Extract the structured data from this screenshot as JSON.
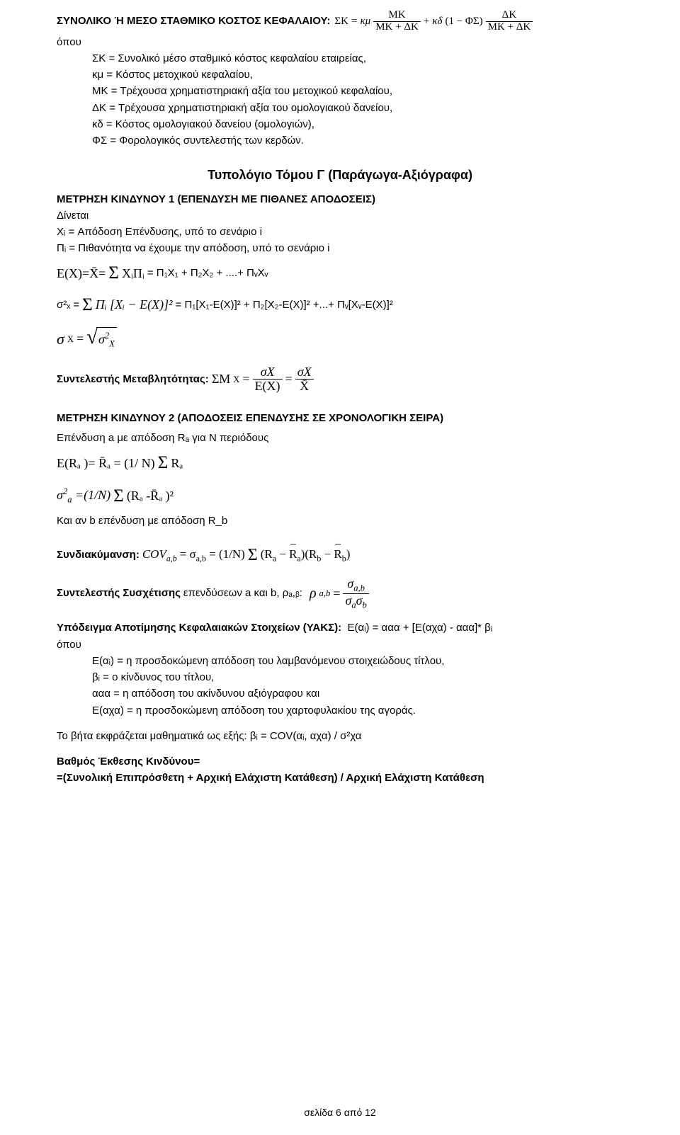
{
  "header": {
    "title": "ΣΥΝΟΛΙΚΟ Ή ΜΕΣΟ ΣΤΑΘΜΙΚΟ ΚΟΣΤΟΣ ΚΕΦΑΛΑΙΟΥ:",
    "sk": "ΣΚ",
    "eq": "=",
    "km": "κμ",
    "mk": "MK",
    "dk": "ΔΚ",
    "plus": "+",
    "kd": "κδ",
    "one_minus_fs": "(1 − ΦΣ)",
    "mk_dk": "MK + ΔΚ"
  },
  "opou": "όπου",
  "defs": {
    "l1": "ΣΚ = Συνολικό μέσο σταθμικό κόστος κεφαλαίου εταιρείας,",
    "l2": "κμ = Κόστος μετοχικού κεφαλαίου,",
    "l3": "ΜΚ = Τρέχουσα χρηματιστηριακή αξία του μετοχικού κεφαλαίου,",
    "l4": "ΔΚ = Τρέχουσα χρηματιστηριακή αξία του ομολογιακού δανείου,",
    "l5": "κδ = Κόστος ομολογιακού δανείου (ομολογιών),",
    "l6": "ΦΣ = Φορολογικός συντελεστής των κερδών."
  },
  "sectionTitle": "Τυπολόγιο Τόμου Γ (Παράγωγα-Αξιόγραφα)",
  "risk1": {
    "title": "ΜΕΤΡΗΣΗ ΚΙΝΔΥΝΟΥ 1 (ΕΠΕΝΔΥΣΗ ΜΕ ΠΙΘΑΝΕΣ ΑΠΟΔΟΣΕΙΣ)",
    "given": "Δίνεται",
    "xi": "Xᵢ = Απόδοση Επένδυσης, υπό το σενάριο i",
    "pi": "Πᵢ = Πιθανότητα να έχουμε την απόδοση, υπό το σενάριο i",
    "ex_lhs": "E(X)=X̄=",
    "ex_sum": "Σ",
    "ex_term": "XᵢΠᵢ",
    "ex_rhs": "= Π₁X₁ + Π₂X₂ + ....+ ΠᵥXᵥ",
    "var_lhs": "σ²ₓ = ",
    "var_sum": "Σ",
    "var_term1": "Πᵢ [Xᵢ − E(X)]²",
    "var_rhs": "= Π₁[X₁-E(X)]² + Π₂[X₂-E(X)]² +...+ Πᵥ[Xᵥ-E(X)]²",
    "sd_lhs": "σ",
    "sd_sub": "X",
    "sd_eq": " = ",
    "sd_body": "σ²X",
    "cv_label": "Συντελεστής Μεταβλητότητας:",
    "cv_sm": "ΣΜ",
    "cv_sub": "X",
    "cv_eq": "=",
    "cv_num1": "σX",
    "cv_den1": "E(X)",
    "cv_num2": "σX",
    "cv_den2": "X̄"
  },
  "risk2": {
    "title": "ΜΕΤΡΗΣΗ ΚΙΝΔΥΝΟΥ 2 (ΑΠΟΔΟΣΕΙΣ ΕΠΕΝΔΥΣΗΣ ΣΕ ΧΡΟΝΟΛΟΓΙΚΗ ΣΕΙΡΑ)",
    "intro": "Επένδυση a με απόδοση Rₐ για N περιόδους",
    "era": "E(Rₐ )= R̄ₐ = (1/ N)",
    "era_sum": "Σ",
    "era_term": "Rₐ",
    "var_a": "σ²ₐ =(1/N)",
    "var_a_sum": "Σ",
    "var_a_term": "(Rₐ -R̄ₐ )²",
    "andb": "Και αν b επένδυση με απόδοση R_b"
  },
  "cov": {
    "label": "Συνδιακύμανση:",
    "expr": "COVₐ,ᵦ = σₐ,ᵦ = (1/N)",
    "sum": "Σ",
    "term_l": "(Rₐ − ",
    "rbar_a": "R̄ₐ",
    "term_m": ")(R_b − ",
    "rbar_b": "R̄_b",
    "term_r": ")"
  },
  "corr": {
    "label": "Συντελεστής Συσχέτισης",
    "txt": " επενδύσεων a και b, ρₐ,ᵦ:",
    "rho": "ρ",
    "sub": "a,b",
    "eq": "=",
    "num": "σₐ,ᵦ",
    "den": "σₐσ_b"
  },
  "yaks": {
    "label": "Υπόδειγμα Αποτίμησης Κεφαλαιακών Στοιχείων (ΥΑΚΣ):",
    "formula": "Ε(αᵢ) = ααα + [Ε(αχα) - ααα]* βᵢ",
    "opou": "όπου",
    "l1": "Ε(αᵢ) = η προσδοκώμενη απόδοση του λαμβανόμενου στοιχειώδους τίτλου,",
    "l2": "βᵢ = ο κίνδυνος του τίτλου,",
    "l3": "ααα = η απόδοση του ακίνδυνου αξιόγραφου και",
    "l4": "Ε(αχα) = η προσδοκώμενη απόδοση του χαρτοφυλακίου της αγοράς."
  },
  "beta": {
    "line": "Το βήτα εκφράζεται μαθηματικά ως εξής: βᵢ = COV(αᵢ, αχα) / σ²χα"
  },
  "exposure": {
    "l1": "Βαθμός Έκθεσης Κινδύνου=",
    "l2": "=(Συνολική Επιπρόσθετη + Αρχική Ελάχιστη Κατάθεση) / Αρχική Ελάχιστη Κατάθεση"
  },
  "footer": "σελίδα 6 από 12"
}
